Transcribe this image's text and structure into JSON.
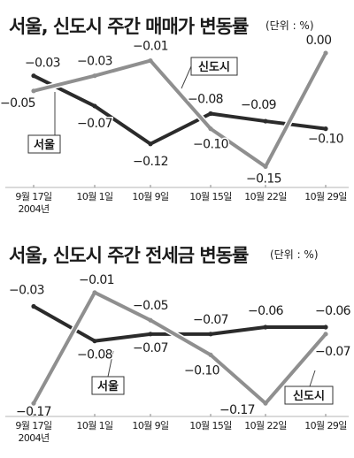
{
  "chart_data": [
    {
      "type": "line",
      "title": "서울, 신도시 주간 매매가 변동률",
      "unit": "(단위 : %)",
      "categories": [
        "9월 17일",
        "10월 1일",
        "10월 9일",
        "10월 15일",
        "10월 22일",
        "10월 29일"
      ],
      "year_label": "2004년",
      "ylim": [
        -0.16,
        0.0
      ],
      "grid": false,
      "series": [
        {
          "name": "서울",
          "color": "#2b2b2b",
          "values": [
            -0.03,
            -0.07,
            -0.12,
            -0.08,
            -0.09,
            -0.1
          ],
          "labels": [
            "−0.03",
            "−0.07",
            "−0.12",
            "−0.08",
            "−0.09",
            "−0.10"
          ]
        },
        {
          "name": "신도시",
          "color": "#8f8f8f",
          "values": [
            -0.05,
            -0.03,
            -0.01,
            -0.1,
            -0.15,
            0.0
          ],
          "labels": [
            "−0.05",
            "−0.03",
            "−0.01",
            "−0.10",
            "−0.15",
            "0.00"
          ]
        }
      ]
    },
    {
      "type": "line",
      "title": "서울, 신도시 주간 전세금 변동률",
      "unit": "(단위 : %)",
      "categories": [
        "9월 17일",
        "10월 1일",
        "10월 9일",
        "10월 15일",
        "10월 22일",
        "10월 29일"
      ],
      "year_label": "2004년",
      "ylim": [
        -0.18,
        0.0
      ],
      "grid": false,
      "series": [
        {
          "name": "서울",
          "color": "#2b2b2b",
          "values": [
            -0.03,
            -0.08,
            -0.07,
            -0.07,
            -0.06,
            -0.06
          ],
          "labels": [
            "−0.03",
            "−0.08",
            "−0.07",
            "−0.07",
            "−0.06",
            "−0.06"
          ]
        },
        {
          "name": "신도시",
          "color": "#8f8f8f",
          "values": [
            -0.17,
            -0.01,
            -0.05,
            -0.1,
            -0.17,
            -0.07
          ],
          "labels": [
            "−0.17",
            "−0.01",
            "−0.05",
            "−0.10",
            "−0.17",
            "−0.07"
          ]
        }
      ]
    }
  ]
}
